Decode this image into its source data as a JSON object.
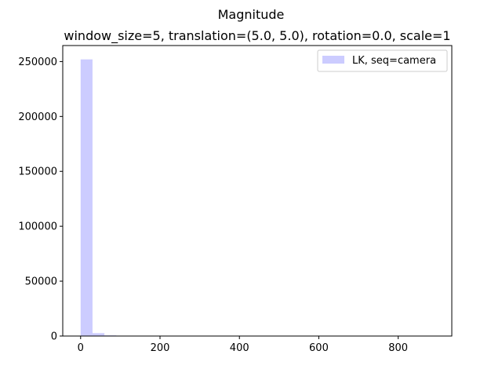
{
  "chart_data": {
    "type": "bar",
    "suptitle": "Magnitude",
    "title": "window_size=5, translation=(5.0, 5.0), rotation=0.0, scale=1",
    "xlabel": "",
    "ylabel": "",
    "xlim": [
      -45,
      935
    ],
    "ylim": [
      0,
      264600
    ],
    "xticks": [
      {
        "value": 0,
        "label": "0"
      },
      {
        "value": 200,
        "label": "200"
      },
      {
        "value": 400,
        "label": "400"
      },
      {
        "value": 600,
        "label": "600"
      },
      {
        "value": 800,
        "label": "800"
      }
    ],
    "yticks": [
      {
        "value": 0,
        "label": "0"
      },
      {
        "value": 50000,
        "label": "50000"
      },
      {
        "value": 100000,
        "label": "100000"
      },
      {
        "value": 150000,
        "label": "150000"
      },
      {
        "value": 200000,
        "label": "200000"
      },
      {
        "value": 250000,
        "label": "250000"
      }
    ],
    "bin_start": 0,
    "bin_width": 30,
    "series": [
      {
        "name": "LK, seq=camera",
        "color": "#ccccff",
        "values": [
          252000,
          2600,
          600,
          150,
          60,
          30,
          15,
          10,
          5,
          3,
          2,
          1,
          1,
          1,
          1,
          0,
          0,
          0,
          0,
          0,
          0,
          0,
          0,
          0,
          0,
          0,
          0,
          0,
          0,
          1
        ]
      }
    ],
    "legend": {
      "placement": "top-right"
    },
    "grid": false
  }
}
